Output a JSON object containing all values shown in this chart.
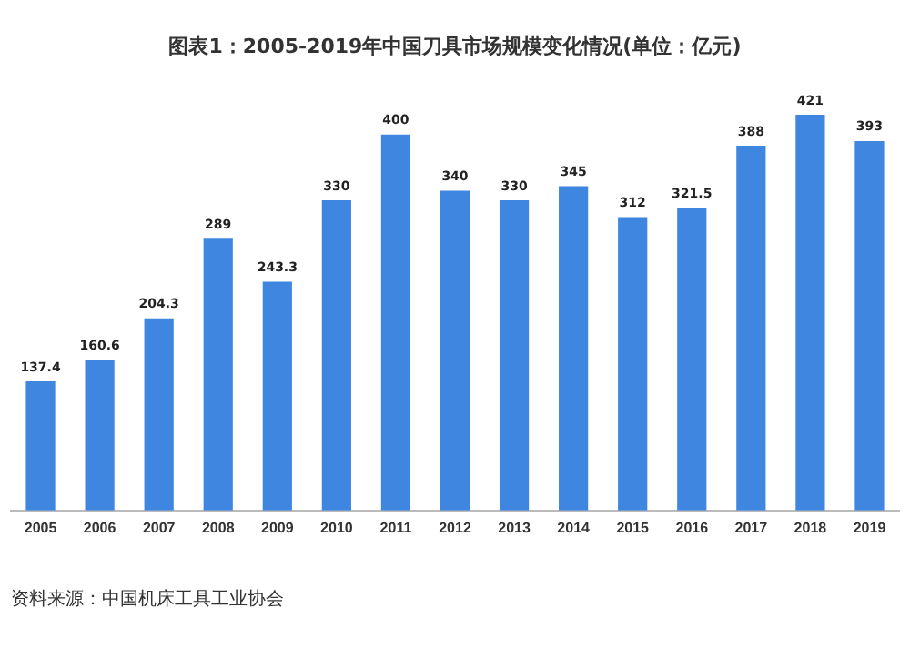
{
  "chart_data": {
    "type": "bar",
    "title": "图表1：2005-2019年中国刀具市场规模变化情况(单位：亿元)",
    "categories": [
      "2005",
      "2006",
      "2007",
      "2008",
      "2009",
      "2010",
      "2011",
      "2012",
      "2013",
      "2014",
      "2015",
      "2016",
      "2017",
      "2018",
      "2019"
    ],
    "values": [
      137.4,
      160.6,
      204.3,
      289,
      243.3,
      330,
      400,
      340,
      330,
      345,
      312,
      321.5,
      388,
      421,
      393
    ],
    "color": "#3f86e0",
    "data_labels": true,
    "grid": false,
    "legend": false,
    "tick_labels": "x",
    "annotations": [
      "资料来源：中国机床工具工业协会"
    ]
  }
}
